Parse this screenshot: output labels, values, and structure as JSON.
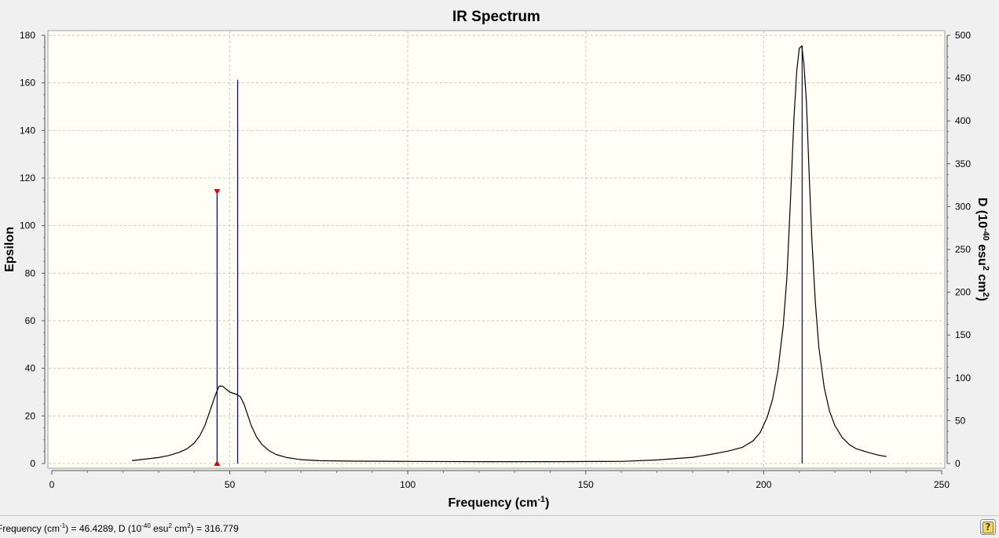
{
  "window": {
    "background": "#f0f0f0",
    "plot_background": "#fffff5"
  },
  "chart_data": {
    "type": "line",
    "title": "IR Spectrum",
    "xlabel_main": "Frequency (cm",
    "xlabel_sup": "-1",
    "xlabel_end": ")",
    "ylabel": "Epsilon",
    "y2label_main": "D (10",
    "y2label_sup1": "-40",
    "y2label_mid": " esu",
    "y2label_sup2": "2",
    "y2label_mid2": " cm",
    "y2label_sup3": "2",
    "y2label_end": ")",
    "xlim": [
      0,
      250
    ],
    "ylim": [
      0,
      180
    ],
    "y2lim": [
      0,
      500
    ],
    "xticks": [
      0,
      50,
      100,
      150,
      200,
      250
    ],
    "yticks": [
      0,
      20,
      40,
      60,
      80,
      100,
      120,
      140,
      160,
      180
    ],
    "y2ticks": [
      0,
      50,
      100,
      150,
      200,
      250,
      300,
      350,
      400,
      450,
      500
    ],
    "grid": true,
    "curve_color": "#000000",
    "stick_color": "#00008b",
    "marker_color": "#e00000",
    "curve": {
      "x": [
        22.5,
        26,
        30,
        33,
        36,
        38,
        40,
        41.5,
        43,
        44.5,
        46,
        47,
        48,
        49,
        50,
        51,
        52,
        53,
        54,
        55,
        56,
        57.5,
        59,
        61,
        63,
        66,
        70,
        75,
        85,
        100,
        120,
        140,
        160,
        170,
        180,
        185,
        190,
        194,
        197,
        199,
        201,
        202.5,
        204,
        205.5,
        206.5,
        207.5,
        208.5,
        209.3,
        210,
        210.7,
        211.3,
        212,
        212.7,
        213.5,
        214.5,
        215.5,
        217,
        218.5,
        220,
        222,
        224,
        226,
        229,
        232,
        234.5
      ],
      "y": [
        1.2,
        1.8,
        2.5,
        3.4,
        4.8,
        6.2,
        8.6,
        11.5,
        16,
        22.5,
        29,
        32.5,
        32.5,
        31.2,
        30,
        29.5,
        29,
        28,
        25,
        20.5,
        16,
        11.2,
        8,
        5.4,
        3.8,
        2.5,
        1.6,
        1.2,
        1.0,
        0.9,
        0.8,
        0.8,
        0.9,
        1.5,
        2.6,
        3.8,
        5.2,
        6.8,
        9.5,
        13,
        19.5,
        27,
        39,
        58,
        78,
        110,
        145,
        165,
        174.5,
        175.5,
        168,
        152,
        124,
        95,
        68,
        49,
        32,
        22,
        16,
        11,
        8,
        6.2,
        4.8,
        3.6,
        2.9
      ]
    },
    "sticks": [
      {
        "frequency": 46.4289,
        "D": 316.779,
        "selected": true
      },
      {
        "frequency": 52.2,
        "D": 448.0,
        "selected": false
      },
      {
        "frequency": 210.8,
        "D": 488.0,
        "selected": false
      }
    ]
  },
  "status": {
    "prefix": "Frequency (cm",
    "freq_sup": "-1",
    "freq_rest": ") = 46.4289, D (10",
    "d_sup1": "-40",
    "d_mid": " esu",
    "d_sup2": "2",
    "d_mid2": " cm",
    "d_sup3": "2",
    "d_end": ") = 316.779"
  },
  "help_button": {
    "icon_glyph": "?",
    "icon_name": "help-icon"
  }
}
